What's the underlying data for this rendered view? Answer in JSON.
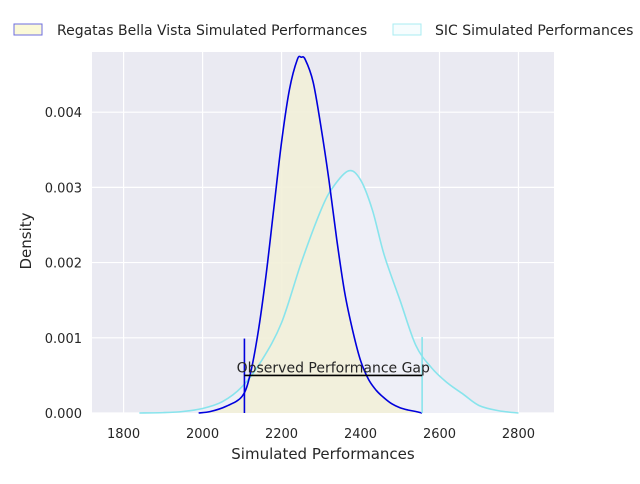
{
  "chart_data": {
    "type": "area",
    "title": "",
    "xlabel": "Simulated Performances",
    "ylabel": "Density",
    "xlim": [
      1720,
      2890
    ],
    "ylim": [
      0,
      0.0048
    ],
    "xticks": [
      1800,
      2000,
      2200,
      2400,
      2600,
      2800
    ],
    "yticks": [
      0,
      0.001,
      0.002,
      0.003,
      0.004
    ],
    "xtick_labels": [
      "1800",
      "2000",
      "2200",
      "2400",
      "2600",
      "2800"
    ],
    "ytick_labels": [
      "0.000",
      "0.001",
      "0.002",
      "0.003",
      "0.004"
    ],
    "grid": true,
    "legend_position": "top",
    "series": [
      {
        "name": "Regatas Bella Vista Simulated Performances",
        "line_color": "#0000dd",
        "fill_color": "#f2f0d8",
        "x": [
          1990,
          2020,
          2060,
          2100,
          2120,
          2140,
          2160,
          2180,
          2200,
          2220,
          2240,
          2250,
          2260,
          2280,
          2300,
          2320,
          2340,
          2360,
          2380,
          2400,
          2420,
          2440,
          2460,
          2480,
          2500,
          2520,
          2540,
          2556
        ],
        "values": [
          0.0,
          2e-05,
          9e-05,
          0.00022,
          0.0005,
          0.00105,
          0.0018,
          0.0027,
          0.0036,
          0.0043,
          0.0047,
          0.00473,
          0.0047,
          0.0044,
          0.0038,
          0.0031,
          0.0023,
          0.0016,
          0.0011,
          0.0007,
          0.00045,
          0.0003,
          0.0002,
          0.00012,
          7e-05,
          4e-05,
          2e-05,
          0.0
        ]
      },
      {
        "name": "SIC Simulated Performances",
        "line_color": "#88e4ec",
        "fill_color": "#eeeff7",
        "x": [
          1840,
          1900,
          1950,
          2000,
          2050,
          2100,
          2150,
          2200,
          2250,
          2300,
          2330,
          2370,
          2400,
          2430,
          2460,
          2500,
          2540,
          2580,
          2620,
          2660,
          2700,
          2750,
          2800
        ],
        "values": [
          0.0,
          5e-06,
          2e-05,
          6e-05,
          0.00015,
          0.00035,
          0.0007,
          0.0012,
          0.002,
          0.0027,
          0.003,
          0.00322,
          0.0031,
          0.0027,
          0.0021,
          0.0015,
          0.0009,
          0.0006,
          0.0004,
          0.00025,
          0.0001,
          3e-05,
          0.0
        ]
      }
    ],
    "markers": [
      {
        "x": 2106,
        "y_top": 0.00099,
        "color": "#0000dd"
      },
      {
        "x": 2556,
        "y_top": 0.00101,
        "color": "#88e4ec"
      }
    ],
    "gap": {
      "label": "Observed Performance Gap",
      "x_start": 2106,
      "x_end": 2556,
      "y": 0.0005
    }
  }
}
